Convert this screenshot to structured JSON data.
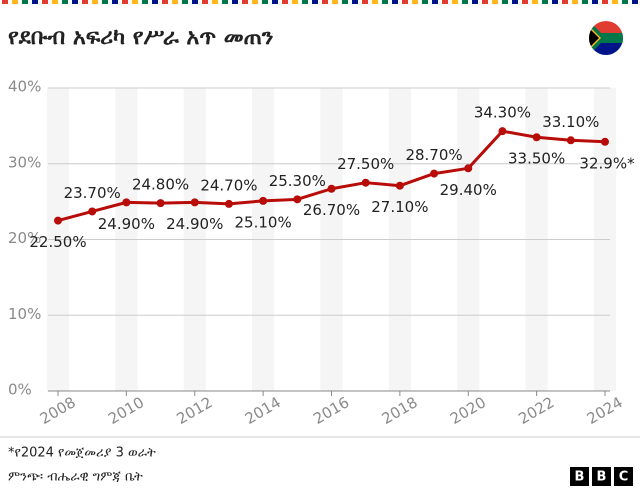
{
  "chart_data": {
    "type": "line",
    "title": "የደቡብ አፍሪካ የሥራ አጥ መጠን",
    "x": [
      2008,
      2009,
      2010,
      2011,
      2012,
      2013,
      2014,
      2015,
      2016,
      2017,
      2018,
      2019,
      2020,
      2021,
      2022,
      2023,
      2024
    ],
    "values": [
      22.5,
      23.7,
      24.9,
      24.8,
      24.9,
      24.7,
      25.1,
      25.3,
      26.7,
      27.5,
      27.1,
      28.7,
      29.4,
      34.3,
      33.5,
      33.1,
      32.9
    ],
    "value_labels": [
      "22.50%",
      "23.70%",
      "24.90%",
      "24.80%",
      "24.90%",
      "24.70%",
      "25.10%",
      "25.30%",
      "26.70%",
      "27.50%",
      "27.10%",
      "28.70%",
      "29.40%",
      "34.30%",
      "33.50%",
      "33.10%",
      "32.9%*"
    ],
    "color": "#b80c09",
    "xlim": [
      2008,
      2024
    ],
    "xticks": [
      2008,
      2010,
      2012,
      2014,
      2016,
      2018,
      2020,
      2022,
      2024
    ],
    "ylim": [
      0,
      40
    ],
    "yticks": [
      {
        "value": 0,
        "label": "0%"
      },
      {
        "value": 10,
        "label": "10%"
      },
      {
        "value": 20,
        "label": "20%"
      },
      {
        "value": 30,
        "label": "30%"
      },
      {
        "value": 40,
        "label": "40%"
      }
    ],
    "grid": true,
    "footnote": "*የ2024 የመጀመሪያ 3 ወራት",
    "source": "ምንጭ፡ ብሔራዊ ግምጃ ቤት",
    "logo": [
      "B",
      "B",
      "C"
    ]
  }
}
